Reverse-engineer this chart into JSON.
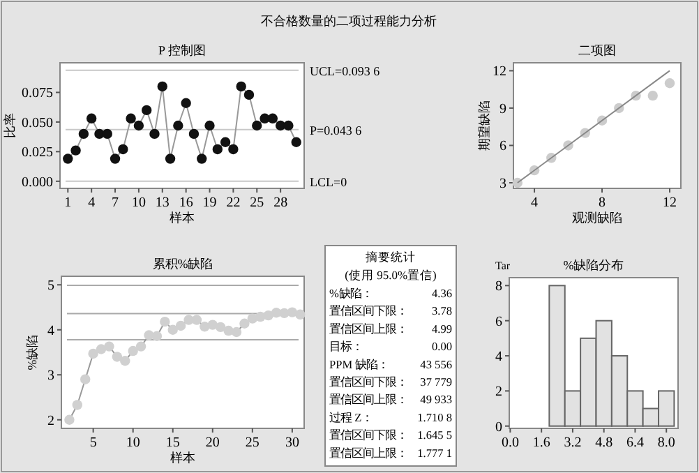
{
  "chart_data": [
    {
      "type": "line",
      "title": "P 控制图",
      "xlabel": "样本",
      "ylabel": "比率",
      "annotations": [
        "不合格数量的二项过程能力分析",
        {
          "text": "UCL=0.093 6",
          "x": 31,
          "y": 0.0936
        },
        {
          "text": "P=0.043 6",
          "x": 31,
          "y": 0.0436
        }
      ],
      "x": [
        1,
        2,
        3,
        4,
        5,
        6,
        7,
        8,
        9,
        10,
        11,
        12,
        13,
        14,
        15,
        16,
        17,
        18,
        19,
        20,
        21,
        22,
        23,
        24,
        25,
        26,
        27,
        28,
        29,
        30
      ],
      "series": [
        {
          "color": "#111111",
          "values": [
            0.019,
            0.026,
            0.04,
            0.053,
            0.04,
            0.04,
            0.019,
            0.027,
            0.053,
            0.047,
            0.06,
            0.04,
            0.08,
            0.019,
            0.047,
            0.066,
            0.04,
            0.019,
            0.047,
            0.027,
            0.033,
            0.027,
            0.08,
            0.073,
            0.047,
            0.053,
            0.053,
            0.047,
            0.047,
            0.033
          ]
        }
      ],
      "marker": "circle",
      "line_style": "solid",
      "xlim": [
        0,
        31
      ],
      "ylim": [
        -0.006,
        0.1
      ],
      "xticks": [
        1,
        4,
        7,
        10,
        13,
        16,
        19,
        22,
        25,
        28
      ],
      "yticks": [
        {
          "value": 0,
          "label": "0.000"
        },
        0.025,
        {
          "value": 0.05,
          "label": "0.050"
        },
        0.075
      ],
      "ref_lines": [
        {
          "axis": "y",
          "value": 0.0936,
          "color": "#c8c8c8"
        },
        {
          "axis": "y",
          "value": 0.0436,
          "color": "#c8c8c8"
        },
        {
          "axis": "y",
          "value": 0,
          "label": "LCL=0",
          "color": "#c8c8c8"
        }
      ]
    },
    {
      "type": "scatter",
      "title": "二项图",
      "xlabel": "观测缺陷",
      "ylabel": "期望缺陷",
      "x": [
        3,
        4,
        5,
        6,
        7,
        8,
        9,
        10,
        11,
        12
      ],
      "series": [
        {
          "color": "#cccccc",
          "values": [
            3,
            4,
            5,
            6,
            7,
            8,
            9,
            10,
            10,
            11
          ]
        },
        {
          "type": "line",
          "marker": "none",
          "color": "#888888",
          "x": [
            3,
            12
          ],
          "values": [
            3,
            12
          ]
        }
      ],
      "marker": "circle",
      "xlim": [
        2.76,
        12.66
      ],
      "ylim": [
        2.55,
        12.64
      ],
      "xticks": [
        4,
        8,
        12
      ],
      "yticks": [
        3,
        6,
        9,
        12
      ]
    },
    {
      "type": "line",
      "title": "累积%缺陷",
      "xlabel": "样本",
      "ylabel": "%缺陷",
      "x": [
        2,
        3,
        4,
        5,
        6,
        7,
        8,
        9,
        10,
        11,
        12,
        13,
        14,
        15,
        16,
        17,
        18,
        19,
        20,
        21,
        22,
        23,
        24,
        25,
        26,
        27,
        28,
        29,
        30,
        31
      ],
      "series": [
        {
          "color": "#d0d0d0",
          "values": [
            2.0,
            2.33,
            2.9,
            3.47,
            3.57,
            3.63,
            3.4,
            3.31,
            3.53,
            3.63,
            3.88,
            3.86,
            4.18,
            4.0,
            4.09,
            4.22,
            4.22,
            4.07,
            4.11,
            4.06,
            3.98,
            3.95,
            4.14,
            4.25,
            4.29,
            4.32,
            4.38,
            4.37,
            4.39,
            4.34
          ]
        }
      ],
      "marker": "circle",
      "line_style": "solid",
      "xlim": [
        1,
        31.5
      ],
      "ylim": [
        1.81,
        5.19
      ],
      "xticks": [
        5,
        10,
        15,
        20,
        25,
        30
      ],
      "yticks": [
        2,
        3,
        4,
        5
      ],
      "ref_lines": [
        {
          "axis": "y",
          "value": 4.99,
          "color": "#aaaaaa"
        },
        {
          "axis": "y",
          "value": 4.36,
          "color": "#aaaaaa"
        },
        {
          "axis": "y",
          "value": 3.78,
          "color": "#aaaaaa"
        }
      ]
    },
    {
      "type": "other",
      "title": "摘要统计",
      "subtitle": "(使用 95.0%置信)",
      "annotations": [
        "%缺陷：",
        "4.36",
        "置信区间下限：",
        "3.78",
        "置信区间上限：",
        "4.99",
        "目标：",
        "0.00",
        "PPM 缺陷：",
        "43 556",
        "置信区间下限：",
        "37 779",
        "置信区间上限：",
        "49 933",
        "过程 Z：",
        "1.710 8",
        "置信区间下限：",
        "1.645 5",
        "置信区间上限：",
        "1.777 1"
      ]
    },
    {
      "type": "histogram",
      "title": "%缺陷分布",
      "annotations": [
        "Tar"
      ],
      "bins": [
        2.0,
        2.8,
        3.6,
        4.4,
        5.2,
        6.0,
        6.8,
        7.6,
        8.4
      ],
      "values": [
        8,
        2,
        5,
        6,
        4,
        2,
        1,
        2
      ],
      "color": "#e2e2e2",
      "xlim": [
        -0.05,
        8.6
      ],
      "ylim": [
        -0.13,
        8.45
      ],
      "xticks": [
        {
          "value": 0,
          "label": "0.0"
        },
        1.6,
        3.2,
        4.8,
        6.4,
        {
          "value": 8,
          "label": "8.0"
        }
      ],
      "yticks": [
        0,
        2,
        4,
        6,
        8
      ]
    }
  ]
}
